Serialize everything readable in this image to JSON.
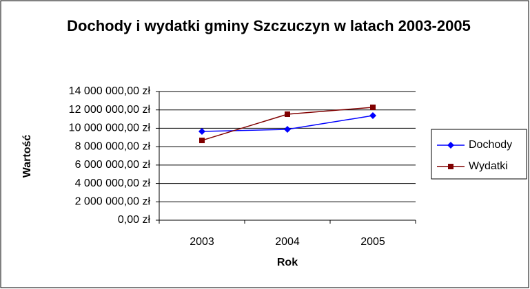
{
  "chart_data": {
    "type": "line",
    "title": "Dochody i wydatki gminy Szczuczyn w latach 2003-2005",
    "x_label": "Rok",
    "y_label": "Wartość",
    "categories": [
      "2003",
      "2004",
      "2005"
    ],
    "series": [
      {
        "name": "Dochody",
        "color": "#0000ff",
        "marker": "diamond",
        "values": [
          9660000,
          9880000,
          11380000
        ]
      },
      {
        "name": "Wydatki",
        "color": "#800000",
        "marker": "square",
        "values": [
          8680000,
          11530000,
          12280000
        ]
      }
    ],
    "ylim": [
      0,
      14000000
    ],
    "yticks": [
      {
        "value": 0,
        "label": "0,00 zł"
      },
      {
        "value": 2000000,
        "label": "2 000 000,00 zł"
      },
      {
        "value": 4000000,
        "label": "4 000 000,00 zł"
      },
      {
        "value": 6000000,
        "label": "6 000 000,00 zł"
      },
      {
        "value": 8000000,
        "label": "8 000 000,00 zł"
      },
      {
        "value": 10000000,
        "label": "10 000 000,00 zł"
      },
      {
        "value": 12000000,
        "label": "12 000 000,00 zł"
      },
      {
        "value": 14000000,
        "label": "14 000 000,00 zł"
      }
    ],
    "grid": true,
    "legend": "right"
  }
}
